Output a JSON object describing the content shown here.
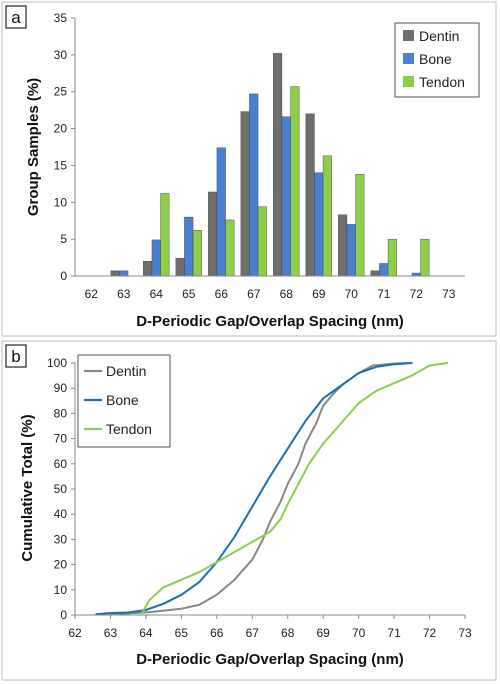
{
  "chart_data": [
    {
      "panel": "a",
      "type": "bar",
      "title": "",
      "xlabel": "D-Periodic Gap/Overlap Spacing (nm)",
      "ylabel": "Group Samples (%)",
      "ylim": [
        0,
        35
      ],
      "yticks": [
        0,
        5,
        10,
        15,
        20,
        25,
        30,
        35
      ],
      "categories": [
        "62",
        "63",
        "64",
        "65",
        "66",
        "67",
        "68",
        "69",
        "70",
        "71",
        "72",
        "73"
      ],
      "legend_position": "top-right",
      "grid": false,
      "series": [
        {
          "name": "Dentin",
          "color": "#6e6e6e",
          "values": [
            0,
            0.7,
            2.0,
            2.4,
            11.4,
            22.3,
            30.2,
            22.0,
            8.3,
            0.7,
            0,
            0
          ]
        },
        {
          "name": "Bone",
          "color": "#4a7fd1",
          "values": [
            0,
            0.7,
            4.9,
            8.0,
            17.4,
            24.7,
            21.6,
            14.0,
            7.0,
            1.7,
            0.4,
            0
          ]
        },
        {
          "name": "Tendon",
          "color": "#8fce4a",
          "values": [
            0,
            0,
            11.2,
            6.2,
            7.6,
            9.4,
            25.7,
            16.3,
            13.8,
            5.0,
            5.0,
            0
          ]
        }
      ]
    },
    {
      "panel": "b",
      "type": "line",
      "title": "",
      "xlabel": "D-Periodic Gap/Overlap Spacing (nm)",
      "ylabel": "Cumulative  Total (%)",
      "xlim": [
        62,
        73
      ],
      "ylim": [
        0,
        100
      ],
      "xticks": [
        62,
        63,
        64,
        65,
        66,
        67,
        68,
        69,
        70,
        71,
        72,
        73
      ],
      "yticks": [
        0,
        10,
        20,
        30,
        40,
        50,
        60,
        70,
        80,
        90,
        100
      ],
      "legend_position": "top-left",
      "grid": false,
      "series": [
        {
          "name": "Dentin",
          "color": "#888888",
          "points": [
            [
              63.0,
              0.3
            ],
            [
              64.0,
              1.0
            ],
            [
              65.0,
              2.5
            ],
            [
              65.5,
              4.0
            ],
            [
              66.0,
              8.0
            ],
            [
              66.5,
              14.0
            ],
            [
              67.0,
              22.0
            ],
            [
              67.3,
              30.0
            ],
            [
              67.5,
              37.0
            ],
            [
              67.8,
              45.0
            ],
            [
              68.0,
              52.0
            ],
            [
              68.3,
              60.0
            ],
            [
              68.5,
              68.0
            ],
            [
              68.8,
              76.0
            ],
            [
              69.0,
              83.0
            ],
            [
              69.3,
              88.0
            ],
            [
              69.6,
              92.0
            ],
            [
              70.0,
              96.0
            ],
            [
              70.4,
              99.0
            ],
            [
              71.0,
              99.8
            ],
            [
              71.4,
              100.0
            ]
          ]
        },
        {
          "name": "Bone",
          "color": "#1a6fb5",
          "points": [
            [
              62.6,
              0.3
            ],
            [
              63.0,
              0.8
            ],
            [
              63.5,
              1.0
            ],
            [
              64.0,
              2.0
            ],
            [
              64.5,
              4.5
            ],
            [
              65.0,
              8.0
            ],
            [
              65.5,
              13.0
            ],
            [
              66.0,
              21.0
            ],
            [
              66.5,
              31.0
            ],
            [
              67.0,
              43.0
            ],
            [
              67.5,
              55.0
            ],
            [
              68.0,
              66.0
            ],
            [
              68.5,
              77.0
            ],
            [
              69.0,
              86.0
            ],
            [
              69.5,
              91.0
            ],
            [
              70.0,
              96.0
            ],
            [
              70.5,
              98.5
            ],
            [
              71.0,
              99.5
            ],
            [
              71.5,
              100.0
            ]
          ]
        },
        {
          "name": "Tendon",
          "color": "#8ccf4c",
          "points": [
            [
              63.9,
              1.0
            ],
            [
              64.1,
              6.0
            ],
            [
              64.5,
              11.0
            ],
            [
              65.0,
              14.0
            ],
            [
              65.5,
              17.0
            ],
            [
              66.0,
              21.0
            ],
            [
              66.5,
              25.0
            ],
            [
              67.0,
              29.0
            ],
            [
              67.5,
              33.0
            ],
            [
              67.8,
              38.0
            ],
            [
              68.0,
              44.0
            ],
            [
              68.3,
              52.0
            ],
            [
              68.6,
              60.0
            ],
            [
              69.0,
              68.0
            ],
            [
              69.5,
              76.0
            ],
            [
              70.0,
              84.0
            ],
            [
              70.5,
              89.0
            ],
            [
              71.0,
              92.0
            ],
            [
              71.5,
              95.0
            ],
            [
              72.0,
              99.0
            ],
            [
              72.5,
              100.0
            ]
          ]
        }
      ]
    }
  ]
}
